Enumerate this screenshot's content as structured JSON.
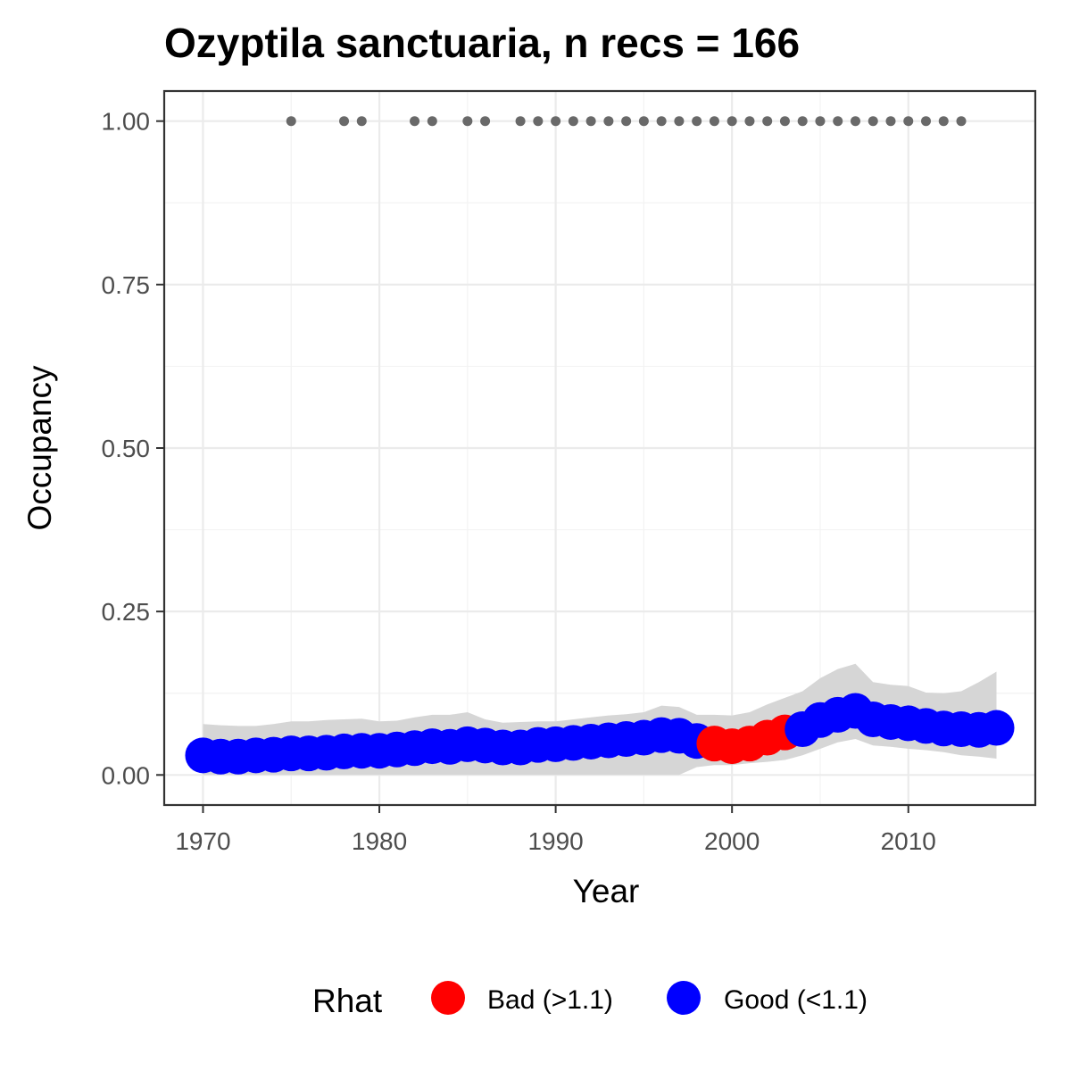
{
  "chart_data": {
    "type": "line",
    "title": "Ozyptila sanctuaria, n recs = 166",
    "xlabel": "Year",
    "ylabel": "Occupancy",
    "xlim": [
      1967.8,
      2017.2
    ],
    "ylim": [
      -0.046,
      1.046
    ],
    "x_ticks": [
      {
        "value": 1970,
        "label": "1970"
      },
      {
        "value": 1980,
        "label": "1980"
      },
      {
        "value": 1990,
        "label": "1990"
      },
      {
        "value": 2000,
        "label": "2000"
      },
      {
        "value": 2010,
        "label": "2010"
      }
    ],
    "y_ticks": [
      {
        "value": 0.0,
        "label": "0.00"
      },
      {
        "value": 0.25,
        "label": "0.25"
      },
      {
        "value": 0.5,
        "label": "0.50"
      },
      {
        "value": 0.75,
        "label": "0.75"
      },
      {
        "value": 1.0,
        "label": "1.00"
      }
    ],
    "grid": true,
    "legend": {
      "position": "bottom",
      "title": "Rhat",
      "entries": [
        {
          "key": "bad",
          "label": "Bad (>1.1)",
          "color": "#FF0000"
        },
        {
          "key": "good",
          "label": "Good (<1.1)",
          "color": "#0000FF"
        }
      ]
    },
    "ribbon_color": "#d6d6d6",
    "record_point_color": "#696969",
    "series": [
      {
        "x": [
          1970,
          1971,
          1972,
          1973,
          1974,
          1975,
          1976,
          1977,
          1978,
          1979,
          1980,
          1981,
          1982,
          1983,
          1984,
          1985,
          1986,
          1987,
          1988,
          1989,
          1990,
          1991,
          1992,
          1993,
          1994,
          1995,
          1996,
          1997,
          1998,
          1999,
          2000,
          2001,
          2002,
          2003,
          2004,
          2005,
          2006,
          2007,
          2008,
          2009,
          2010,
          2011,
          2012,
          2013,
          2014,
          2015
        ],
        "mean": [
          0.03,
          0.028,
          0.028,
          0.03,
          0.031,
          0.033,
          0.033,
          0.034,
          0.036,
          0.037,
          0.037,
          0.039,
          0.041,
          0.044,
          0.043,
          0.047,
          0.045,
          0.042,
          0.042,
          0.046,
          0.047,
          0.049,
          0.051,
          0.053,
          0.055,
          0.057,
          0.061,
          0.06,
          0.052,
          0.048,
          0.044,
          0.048,
          0.057,
          0.065,
          0.07,
          0.084,
          0.092,
          0.098,
          0.085,
          0.081,
          0.079,
          0.075,
          0.071,
          0.07,
          0.069,
          0.072
        ],
        "lower": [
          0.0,
          0.0,
          0.0,
          0.0,
          0.0,
          0.0,
          0.0,
          0.0,
          0.0,
          0.0,
          0.0,
          0.0,
          0.0,
          0.0,
          0.0,
          0.0,
          0.0,
          0.0,
          0.0,
          0.0,
          0.0,
          0.0,
          0.0,
          0.0,
          0.0,
          0.0,
          0.0,
          0.0,
          0.012,
          0.015,
          0.015,
          0.018,
          0.02,
          0.023,
          0.03,
          0.04,
          0.05,
          0.055,
          0.045,
          0.043,
          0.04,
          0.038,
          0.035,
          0.03,
          0.028,
          0.025
        ],
        "upper": [
          0.078,
          0.076,
          0.075,
          0.075,
          0.078,
          0.082,
          0.082,
          0.084,
          0.085,
          0.086,
          0.082,
          0.083,
          0.088,
          0.092,
          0.092,
          0.096,
          0.085,
          0.08,
          0.081,
          0.082,
          0.082,
          0.085,
          0.088,
          0.091,
          0.093,
          0.096,
          0.106,
          0.104,
          0.092,
          0.092,
          0.091,
          0.096,
          0.108,
          0.118,
          0.128,
          0.148,
          0.162,
          0.17,
          0.142,
          0.138,
          0.136,
          0.126,
          0.125,
          0.128,
          0.142,
          0.158
        ],
        "rhat": [
          "good",
          "good",
          "good",
          "good",
          "good",
          "good",
          "good",
          "good",
          "good",
          "good",
          "good",
          "good",
          "good",
          "good",
          "good",
          "good",
          "good",
          "good",
          "good",
          "good",
          "good",
          "good",
          "good",
          "good",
          "good",
          "good",
          "good",
          "good",
          "good",
          "bad",
          "bad",
          "bad",
          "bad",
          "bad",
          "good",
          "good",
          "good",
          "good",
          "good",
          "good",
          "good",
          "good",
          "good",
          "good",
          "good",
          "good"
        ]
      },
      {
        "name": "",
        "type": "scatter",
        "y_value": 1.0,
        "x": [
          1975,
          1978,
          1979,
          1982,
          1983,
          1985,
          1986,
          1988,
          1989,
          1990,
          1991,
          1992,
          1993,
          1994,
          1995,
          1996,
          1997,
          1998,
          1999,
          2000,
          2001,
          2002,
          2003,
          2004,
          2005,
          2006,
          2007,
          2008,
          2009,
          2010,
          2011,
          2012,
          2013
        ]
      }
    ]
  }
}
